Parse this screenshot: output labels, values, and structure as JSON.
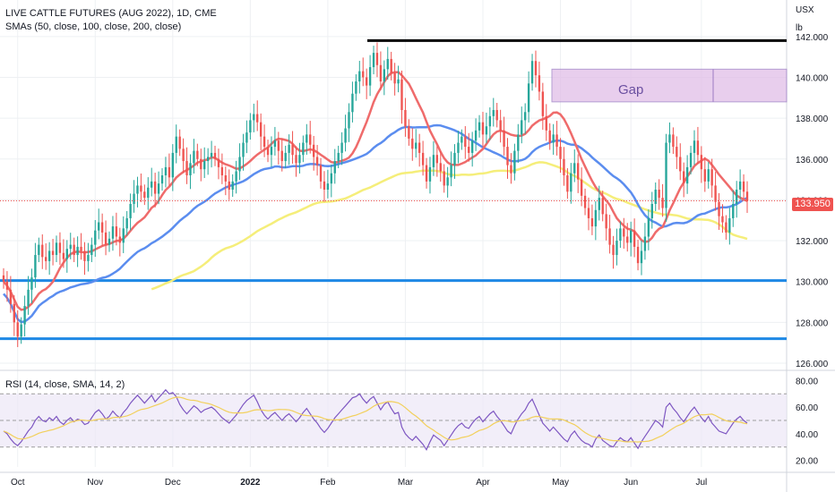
{
  "chart_data": {
    "type": "candlestick",
    "title": "LIVE CATTLE FUTURES (AUG 2022), 1D, CME",
    "subtitle": "SMAs (50, close, 100, close, 200, close)",
    "currency": "USX",
    "unit": "lb",
    "last_price": "133.950",
    "ylim": [
      126,
      143
    ],
    "y_ticks": [
      "142.000",
      "140.000",
      "138.000",
      "136.000",
      "134.000",
      "132.000",
      "130.000",
      "128.000",
      "126.000"
    ],
    "x_ticks": [
      "Oct",
      "Nov",
      "Dec",
      "2022",
      "Feb",
      "Mar",
      "Apr",
      "May",
      "Jun",
      "Jul"
    ],
    "colors": {
      "up": "#26a69a",
      "down": "#ef5350",
      "sma50": "#ef6b6b",
      "sma100": "#5b8def",
      "sma200": "#f5ee7a",
      "support": "#1e88e5",
      "resistance": "#000000",
      "gap": "#e1bee7"
    },
    "annotations": {
      "gap_label": "Gap",
      "gap_zone": [
        138.8,
        140.4
      ],
      "resistance": 141.8,
      "support_upper": 130.05,
      "support_lower": 127.2
    },
    "candles_close": [
      130.0,
      129.6,
      128.9,
      128.0,
      127.3,
      127.9,
      128.8,
      129.6,
      130.2,
      131.3,
      131.8,
      131.2,
      131.0,
      131.5,
      131.3,
      131.9,
      131.4,
      131.1,
      131.6,
      131.8,
      131.3,
      131.7,
      131.5,
      131.0,
      131.3,
      131.8,
      132.5,
      132.9,
      132.4,
      131.8,
      132.1,
      132.7,
      132.2,
      131.9,
      132.6,
      133.1,
      133.8,
      134.3,
      134.7,
      134.4,
      134.1,
      134.6,
      134.9,
      134.3,
      134.8,
      135.2,
      135.6,
      135.1,
      136.3,
      137.1,
      136.5,
      135.9,
      135.2,
      135.8,
      136.4,
      136.0,
      135.5,
      135.9,
      136.1,
      136.3,
      136.0,
      135.6,
      135.2,
      134.9,
      134.5,
      134.9,
      135.4,
      136.1,
      136.8,
      137.3,
      137.9,
      138.2,
      137.8,
      137.1,
      136.6,
      136.2,
      136.6,
      136.9,
      136.4,
      135.9,
      136.3,
      136.7,
      136.2,
      135.8,
      136.2,
      136.8,
      137.2,
      136.7,
      136.1,
      135.7,
      134.9,
      134.5,
      134.8,
      135.3,
      135.9,
      136.3,
      136.8,
      137.5,
      138.3,
      139.2,
      139.8,
      140.3,
      140.0,
      139.6,
      140.5,
      141.2,
      140.6,
      139.8,
      140.4,
      140.9,
      140.2,
      139.7,
      139.9,
      138.4,
      137.6,
      137.0,
      136.5,
      136.8,
      136.3,
      135.7,
      134.9,
      135.6,
      136.2,
      135.8,
      135.4,
      134.7,
      135.1,
      135.7,
      136.3,
      136.8,
      137.1,
      136.6,
      136.3,
      136.9,
      137.4,
      137.8,
      137.2,
      137.6,
      138.1,
      138.4,
      137.9,
      137.4,
      136.6,
      135.7,
      135.3,
      136.4,
      137.2,
      137.9,
      138.3,
      139.7,
      140.8,
      140.1,
      139.3,
      138.1,
      137.4,
      136.8,
      137.2,
      136.6,
      136.0,
      135.2,
      134.4,
      135.3,
      135.8,
      135.0,
      134.2,
      133.6,
      133.1,
      132.7,
      133.5,
      134.1,
      133.3,
      132.6,
      131.8,
      131.3,
      132.0,
      132.6,
      132.2,
      131.9,
      132.5,
      131.7,
      130.9,
      131.5,
      132.2,
      133.1,
      133.8,
      134.5,
      134.1,
      133.6,
      136.8,
      137.2,
      136.6,
      136.1,
      135.4,
      134.8,
      135.6,
      136.3,
      136.9,
      136.2,
      135.5,
      134.9,
      135.5,
      134.7,
      133.9,
      133.2,
      132.9,
      132.4,
      133.1,
      133.8,
      134.5,
      134.9,
      134.4,
      133.95
    ],
    "rsi": {
      "label": "RSI (14, close, SMA, 14, 2)",
      "ylim": [
        15,
        85
      ],
      "y_ticks": [
        "80.00",
        "60.00",
        "40.00",
        "20.00"
      ],
      "band": [
        30,
        70
      ],
      "mid": 50,
      "line_color": "#7e57c2",
      "signal_color": "#f2d05b",
      "values": [
        42,
        40,
        36,
        33,
        31,
        34,
        38,
        42,
        45,
        50,
        53,
        50,
        49,
        52,
        50,
        53,
        49,
        47,
        50,
        52,
        49,
        51,
        50,
        47,
        48,
        52,
        56,
        58,
        55,
        51,
        53,
        57,
        54,
        52,
        56,
        59,
        63,
        66,
        69,
        66,
        63,
        66,
        69,
        64,
        67,
        70,
        73,
        70,
        71,
        68,
        62,
        58,
        55,
        58,
        61,
        59,
        56,
        58,
        59,
        60,
        58,
        55,
        52,
        50,
        48,
        51,
        54,
        58,
        62,
        65,
        67,
        69,
        64,
        58,
        54,
        51,
        54,
        56,
        53,
        50,
        53,
        55,
        52,
        49,
        52,
        56,
        59,
        55,
        51,
        48,
        44,
        41,
        44,
        48,
        52,
        55,
        58,
        61,
        64,
        67,
        68,
        70,
        66,
        63,
        66,
        68,
        63,
        58,
        62,
        64,
        59,
        55,
        56,
        45,
        40,
        37,
        35,
        38,
        35,
        32,
        28,
        34,
        39,
        37,
        35,
        31,
        35,
        39,
        43,
        46,
        48,
        45,
        44,
        48,
        51,
        53,
        49,
        52,
        55,
        57,
        53,
        50,
        46,
        42,
        40,
        46,
        51,
        55,
        58,
        63,
        66,
        60,
        54,
        48,
        45,
        42,
        45,
        42,
        39,
        36,
        34,
        39,
        42,
        38,
        35,
        33,
        32,
        30,
        36,
        39,
        35,
        33,
        31,
        30,
        34,
        37,
        35,
        34,
        37,
        33,
        29,
        34,
        38,
        42,
        46,
        50,
        48,
        45,
        60,
        63,
        59,
        56,
        52,
        49,
        53,
        57,
        60,
        56,
        52,
        49,
        53,
        48,
        45,
        42,
        41,
        40,
        44,
        48,
        51,
        53,
        50,
        48
      ]
    }
  }
}
